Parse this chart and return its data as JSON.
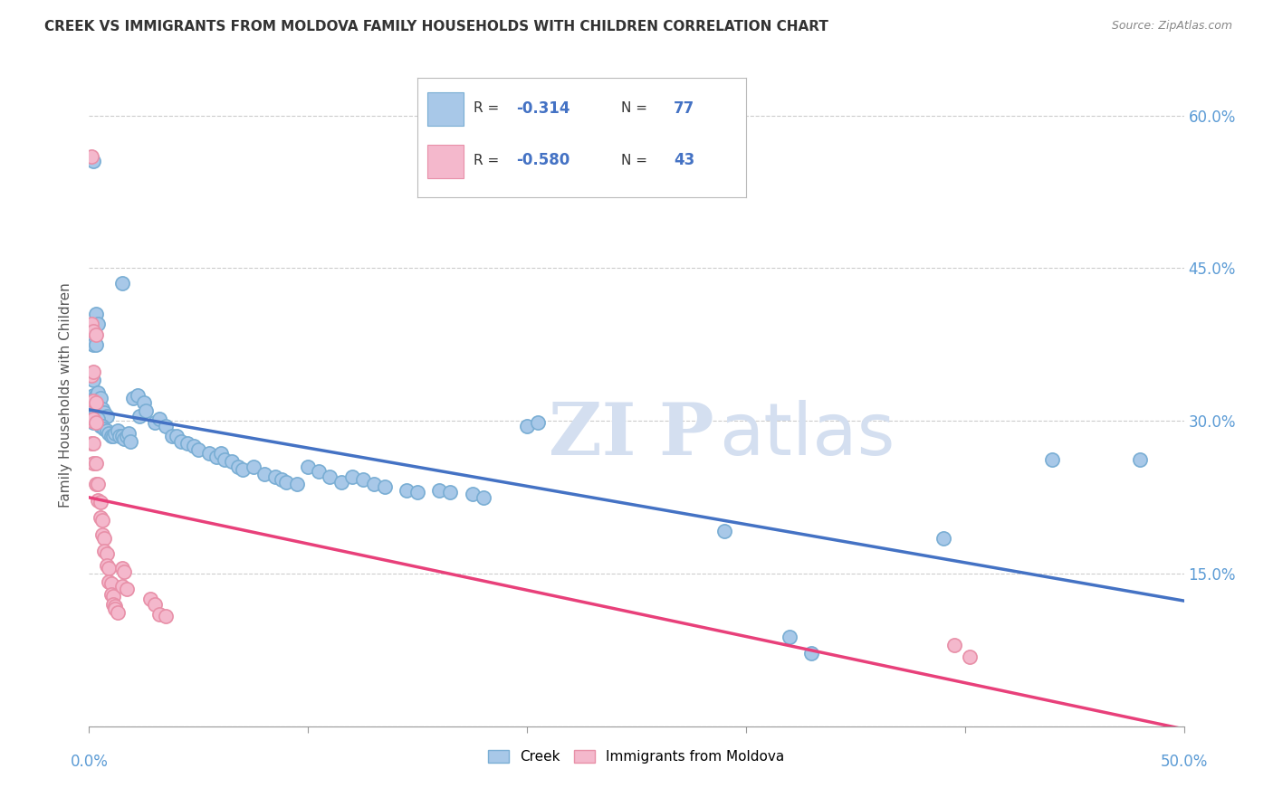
{
  "title": "CREEK VS IMMIGRANTS FROM MOLDOVA FAMILY HOUSEHOLDS WITH CHILDREN CORRELATION CHART",
  "source": "Source: ZipAtlas.com",
  "ylabel": "Family Households with Children",
  "creek_color": "#a8c8e8",
  "creek_edge_color": "#7aaed4",
  "creek_line_color": "#4472c4",
  "moldova_color": "#f4b8cc",
  "moldova_edge_color": "#e890a8",
  "moldova_line_color": "#e8407a",
  "legend_R_color": "#4472c4",
  "background_color": "#ffffff",
  "grid_color": "#cccccc",
  "watermark_ZI": "ZI",
  "watermark_P": "P",
  "watermark_atlas": "atlas",
  "watermark_color": "#d4dff0",
  "title_color": "#333333",
  "axis_label_color": "#5b9bd5",
  "creek_scatter": [
    [
      0.002,
      0.555
    ],
    [
      0.015,
      0.435
    ],
    [
      0.003,
      0.405
    ],
    [
      0.004,
      0.395
    ],
    [
      0.001,
      0.385
    ],
    [
      0.002,
      0.375
    ],
    [
      0.003,
      0.375
    ],
    [
      0.001,
      0.345
    ],
    [
      0.002,
      0.34
    ],
    [
      0.002,
      0.325
    ],
    [
      0.003,
      0.325
    ],
    [
      0.004,
      0.328
    ],
    [
      0.005,
      0.322
    ],
    [
      0.002,
      0.31
    ],
    [
      0.003,
      0.308
    ],
    [
      0.004,
      0.305
    ],
    [
      0.005,
      0.31
    ],
    [
      0.006,
      0.312
    ],
    [
      0.007,
      0.308
    ],
    [
      0.008,
      0.305
    ],
    [
      0.001,
      0.3
    ],
    [
      0.002,
      0.298
    ],
    [
      0.003,
      0.3
    ],
    [
      0.004,
      0.302
    ],
    [
      0.005,
      0.295
    ],
    [
      0.006,
      0.295
    ],
    [
      0.007,
      0.292
    ],
    [
      0.008,
      0.29
    ],
    [
      0.009,
      0.288
    ],
    [
      0.01,
      0.285
    ],
    [
      0.011,
      0.285
    ],
    [
      0.012,
      0.288
    ],
    [
      0.013,
      0.29
    ],
    [
      0.014,
      0.285
    ],
    [
      0.015,
      0.285
    ],
    [
      0.016,
      0.282
    ],
    [
      0.017,
      0.285
    ],
    [
      0.018,
      0.288
    ],
    [
      0.019,
      0.28
    ],
    [
      0.02,
      0.322
    ],
    [
      0.022,
      0.325
    ],
    [
      0.025,
      0.318
    ],
    [
      0.023,
      0.305
    ],
    [
      0.026,
      0.31
    ],
    [
      0.03,
      0.298
    ],
    [
      0.032,
      0.302
    ],
    [
      0.035,
      0.295
    ],
    [
      0.038,
      0.285
    ],
    [
      0.04,
      0.285
    ],
    [
      0.042,
      0.28
    ],
    [
      0.045,
      0.278
    ],
    [
      0.048,
      0.275
    ],
    [
      0.05,
      0.272
    ],
    [
      0.055,
      0.268
    ],
    [
      0.058,
      0.265
    ],
    [
      0.06,
      0.268
    ],
    [
      0.062,
      0.262
    ],
    [
      0.065,
      0.26
    ],
    [
      0.068,
      0.255
    ],
    [
      0.07,
      0.252
    ],
    [
      0.075,
      0.255
    ],
    [
      0.08,
      0.248
    ],
    [
      0.085,
      0.245
    ],
    [
      0.088,
      0.242
    ],
    [
      0.09,
      0.24
    ],
    [
      0.095,
      0.238
    ],
    [
      0.1,
      0.255
    ],
    [
      0.105,
      0.25
    ],
    [
      0.11,
      0.245
    ],
    [
      0.115,
      0.24
    ],
    [
      0.12,
      0.245
    ],
    [
      0.125,
      0.242
    ],
    [
      0.13,
      0.238
    ],
    [
      0.135,
      0.235
    ],
    [
      0.145,
      0.232
    ],
    [
      0.15,
      0.23
    ],
    [
      0.16,
      0.232
    ],
    [
      0.165,
      0.23
    ],
    [
      0.175,
      0.228
    ],
    [
      0.18,
      0.225
    ],
    [
      0.2,
      0.295
    ],
    [
      0.205,
      0.298
    ],
    [
      0.29,
      0.192
    ],
    [
      0.32,
      0.088
    ],
    [
      0.33,
      0.072
    ],
    [
      0.39,
      0.185
    ],
    [
      0.44,
      0.262
    ],
    [
      0.48,
      0.262
    ]
  ],
  "moldova_scatter": [
    [
      0.001,
      0.56
    ],
    [
      0.001,
      0.395
    ],
    [
      0.002,
      0.388
    ],
    [
      0.003,
      0.385
    ],
    [
      0.001,
      0.345
    ],
    [
      0.002,
      0.348
    ],
    [
      0.002,
      0.32
    ],
    [
      0.003,
      0.318
    ],
    [
      0.001,
      0.3
    ],
    [
      0.002,
      0.302
    ],
    [
      0.003,
      0.298
    ],
    [
      0.001,
      0.278
    ],
    [
      0.002,
      0.278
    ],
    [
      0.002,
      0.258
    ],
    [
      0.003,
      0.258
    ],
    [
      0.003,
      0.238
    ],
    [
      0.004,
      0.238
    ],
    [
      0.004,
      0.222
    ],
    [
      0.005,
      0.22
    ],
    [
      0.005,
      0.205
    ],
    [
      0.006,
      0.202
    ],
    [
      0.006,
      0.188
    ],
    [
      0.007,
      0.185
    ],
    [
      0.007,
      0.172
    ],
    [
      0.008,
      0.17
    ],
    [
      0.008,
      0.158
    ],
    [
      0.009,
      0.155
    ],
    [
      0.009,
      0.142
    ],
    [
      0.01,
      0.14
    ],
    [
      0.01,
      0.13
    ],
    [
      0.011,
      0.128
    ],
    [
      0.011,
      0.12
    ],
    [
      0.012,
      0.118
    ],
    [
      0.012,
      0.115
    ],
    [
      0.013,
      0.112
    ],
    [
      0.015,
      0.155
    ],
    [
      0.016,
      0.152
    ],
    [
      0.015,
      0.138
    ],
    [
      0.017,
      0.135
    ],
    [
      0.028,
      0.125
    ],
    [
      0.03,
      0.12
    ],
    [
      0.032,
      0.11
    ],
    [
      0.035,
      0.108
    ],
    [
      0.395,
      0.08
    ],
    [
      0.402,
      0.068
    ]
  ],
  "xlim": [
    0.0,
    0.5
  ],
  "ylim": [
    0.0,
    0.65
  ],
  "x_ticks_minor": [
    0.1,
    0.2,
    0.3,
    0.4
  ],
  "y_ticks": [
    0.0,
    0.15,
    0.3,
    0.45,
    0.6
  ],
  "y_tick_labels_right": [
    "",
    "15.0%",
    "30.0%",
    "45.0%",
    "60.0%"
  ]
}
